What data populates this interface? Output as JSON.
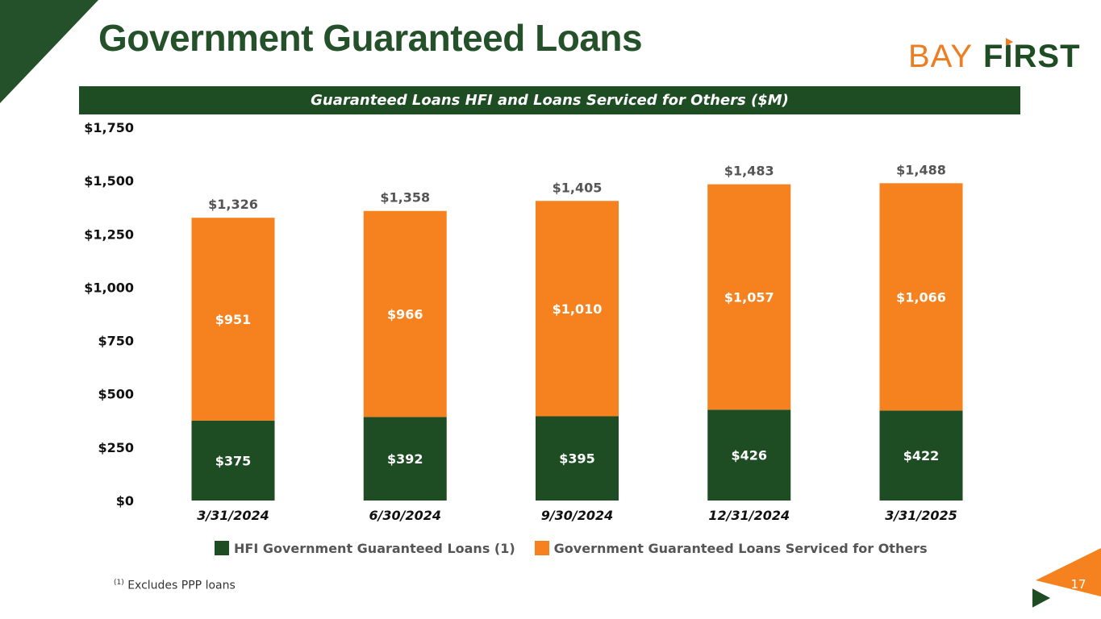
{
  "page": {
    "title": "Government Guaranteed Loans",
    "logo": {
      "part1": "BAY",
      "part2": "FIRST"
    },
    "banner": "Guaranteed Loans HFI and Loans Serviced for Others ($M)",
    "footnote": {
      "marker": "(1)",
      "text": "Excludes PPP loans"
    },
    "page_number": "17"
  },
  "colors": {
    "dark_green": "#1e4d24",
    "orange": "#f5821f",
    "title_green": "#24502a"
  },
  "chart_data": {
    "type": "bar",
    "stacked": true,
    "title": "Guaranteed Loans HFI and Loans Serviced for Others ($M)",
    "categories": [
      "3/31/2024",
      "6/30/2024",
      "9/30/2024",
      "12/31/2024",
      "3/31/2025"
    ],
    "series": [
      {
        "name": "HFI Government Guaranteed Loans (1)",
        "color": "#1e4d24",
        "values": [
          375,
          392,
          395,
          426,
          422
        ],
        "labels": [
          "$375",
          "$392",
          "$395",
          "$426",
          "$422"
        ]
      },
      {
        "name": "Government Guaranteed Loans Serviced for Others",
        "color": "#f5821f",
        "values": [
          951,
          966,
          1010,
          1057,
          1066
        ],
        "labels": [
          "$951",
          "$966",
          "$1,010",
          "$1,057",
          "$1,066"
        ]
      }
    ],
    "totals": [
      1326,
      1358,
      1405,
      1483,
      1488
    ],
    "total_labels": [
      "$1,326",
      "$1,358",
      "$1,405",
      "$1,483",
      "$1,488"
    ],
    "ylim": [
      0,
      1750
    ],
    "yticks": [
      0,
      250,
      500,
      750,
      1000,
      1250,
      1500,
      1750
    ],
    "ytick_labels": [
      "$0",
      "$250",
      "$500",
      "$750",
      "$1,000",
      "$1,250",
      "$1,500",
      "$1,750"
    ],
    "grid": false,
    "legend": "bottom"
  }
}
